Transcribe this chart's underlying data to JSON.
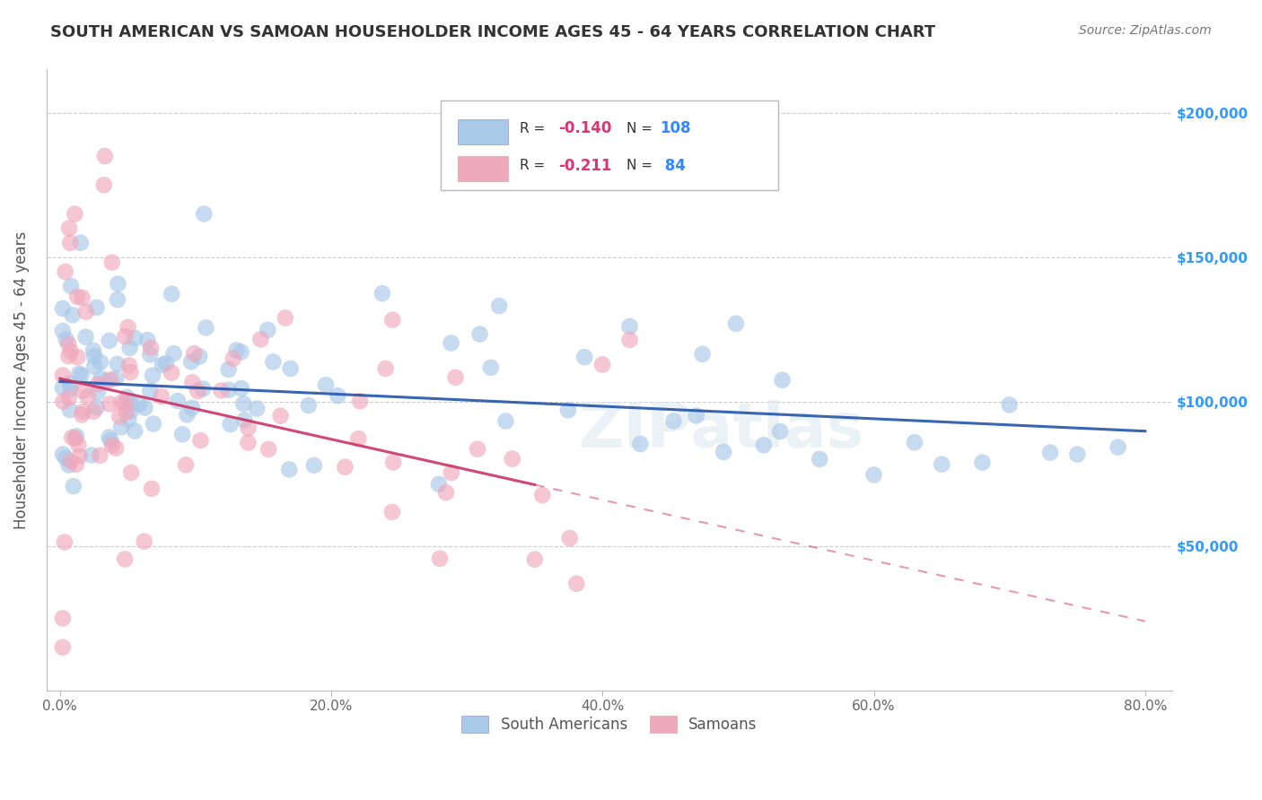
{
  "title": "SOUTH AMERICAN VS SAMOAN HOUSEHOLDER INCOME AGES 45 - 64 YEARS CORRELATION CHART",
  "source": "Source: ZipAtlas.com",
  "ylabel": "Householder Income Ages 45 - 64 years",
  "xlabel_ticks": [
    "0.0%",
    "20.0%",
    "40.0%",
    "60.0%",
    "80.0%"
  ],
  "xlabel_vals": [
    0.0,
    20.0,
    40.0,
    60.0,
    80.0
  ],
  "ylabel_ticks": [
    "$50,000",
    "$100,000",
    "$150,000",
    "$200,000"
  ],
  "ylabel_vals": [
    50000,
    100000,
    150000,
    200000
  ],
  "xlim": [
    -1.0,
    82.0
  ],
  "ylim": [
    0,
    215000
  ],
  "blue_R": -0.14,
  "blue_N": 108,
  "pink_R": -0.211,
  "pink_N": 84,
  "blue_color": "#a8c8e8",
  "pink_color": "#f0a8bc",
  "blue_line_color": "#2255aa",
  "pink_line_color": "#cc3366",
  "blue_intercept": 107000,
  "blue_slope": -215,
  "pink_intercept": 108000,
  "pink_slope": -1050,
  "pink_solid_end": 35,
  "watermark": "ZIPatlas",
  "background_color": "#ffffff",
  "grid_color": "#cccccc",
  "title_color": "#333333",
  "axis_label_color": "#555555",
  "right_tick_color": "#3399ff",
  "legend_R_color": "#dd3377",
  "legend_N_color": "#3388ff",
  "legend_text_color": "#333333"
}
